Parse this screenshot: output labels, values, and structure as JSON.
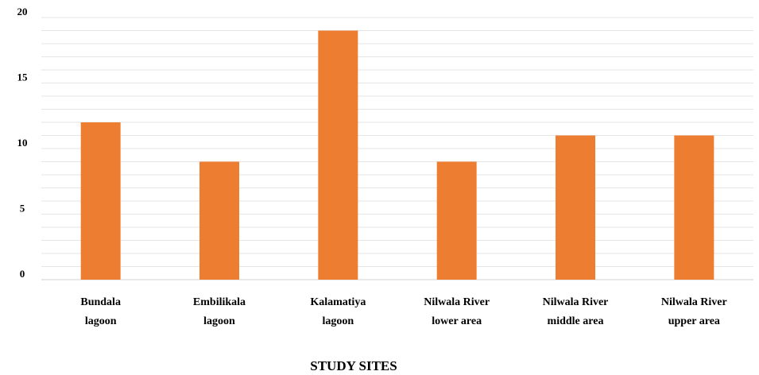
{
  "chart_data": {
    "type": "bar",
    "title": "",
    "xlabel": "STUDY SITES",
    "ylabel": "",
    "ylim": [
      0,
      20
    ],
    "yticks": [
      0,
      5,
      10,
      15,
      20
    ],
    "minor_gridline_step": 1,
    "grid": true,
    "legend": "none",
    "categories": [
      [
        "Bundala",
        "lagoon"
      ],
      [
        "Embilikala",
        "lagoon"
      ],
      [
        "Kalamatiya",
        "lagoon"
      ],
      [
        "Nilwala River",
        "lower area"
      ],
      [
        "Nilwala River",
        "middle area"
      ],
      [
        "Nilwala River",
        "upper area"
      ]
    ],
    "values": [
      12,
      9,
      19,
      9,
      11,
      11
    ],
    "colors": {
      "bar": "#ED7D31",
      "grid": "#e6e6e6",
      "axis": "#d0d0d0"
    }
  }
}
